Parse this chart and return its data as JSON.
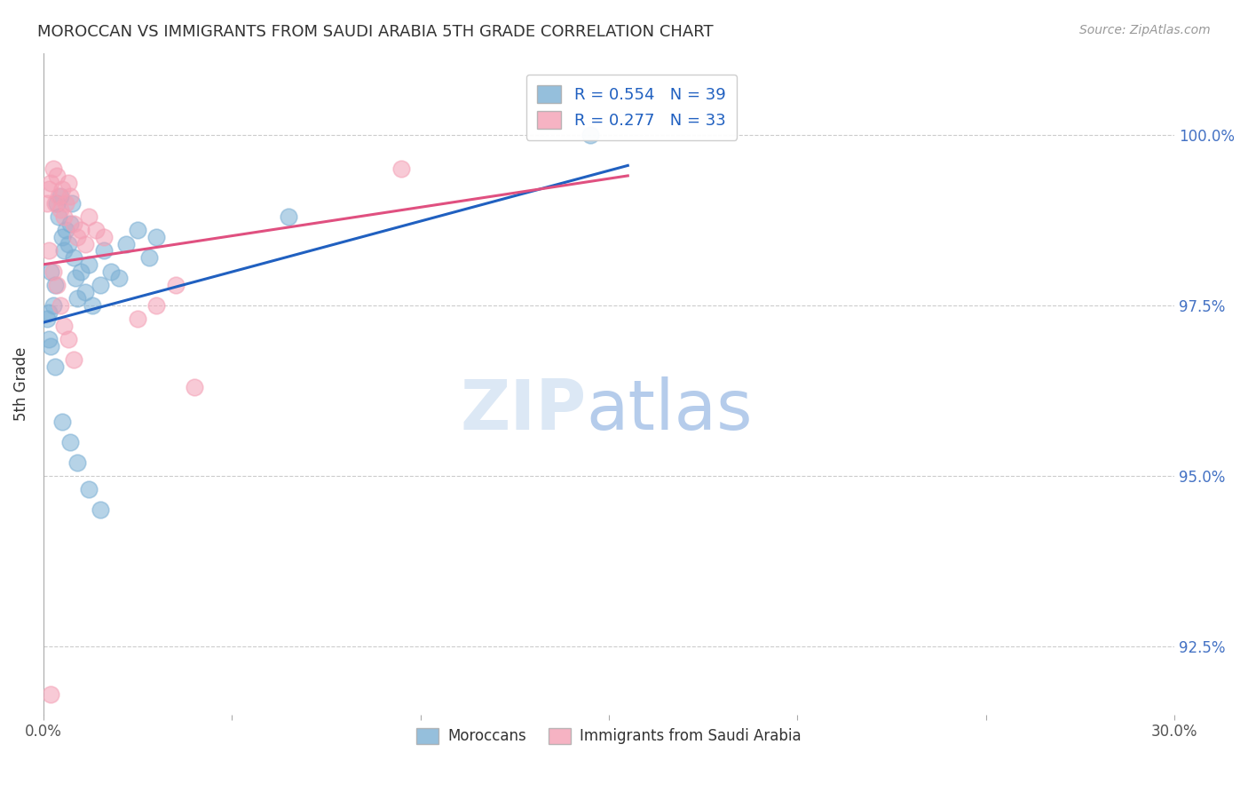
{
  "title": "MOROCCAN VS IMMIGRANTS FROM SAUDI ARABIA 5TH GRADE CORRELATION CHART",
  "source": "Source: ZipAtlas.com",
  "ylabel": "5th Grade",
  "y_ticks": [
    92.5,
    95.0,
    97.5,
    100.0
  ],
  "y_tick_labels": [
    "92.5%",
    "95.0%",
    "97.5%",
    "100.0%"
  ],
  "x_range": [
    0.0,
    30.0
  ],
  "y_range": [
    91.5,
    101.2
  ],
  "legend_blue_label": "Moroccans",
  "legend_pink_label": "Immigrants from Saudi Arabia",
  "blue_R": 0.554,
  "blue_N": 39,
  "pink_R": 0.277,
  "pink_N": 33,
  "blue_color": "#7bafd4",
  "pink_color": "#f4a0b5",
  "blue_line_color": "#2060c0",
  "pink_line_color": "#e05080",
  "blue_scatter": [
    [
      0.15,
      97.4
    ],
    [
      0.2,
      98.0
    ],
    [
      0.25,
      97.5
    ],
    [
      0.3,
      97.8
    ],
    [
      0.35,
      99.0
    ],
    [
      0.4,
      98.8
    ],
    [
      0.45,
      99.1
    ],
    [
      0.5,
      98.5
    ],
    [
      0.55,
      98.3
    ],
    [
      0.6,
      98.6
    ],
    [
      0.65,
      98.4
    ],
    [
      0.7,
      98.7
    ],
    [
      0.75,
      99.0
    ],
    [
      0.8,
      98.2
    ],
    [
      0.85,
      97.9
    ],
    [
      0.9,
      97.6
    ],
    [
      1.0,
      98.0
    ],
    [
      1.1,
      97.7
    ],
    [
      1.2,
      98.1
    ],
    [
      1.3,
      97.5
    ],
    [
      1.5,
      97.8
    ],
    [
      1.6,
      98.3
    ],
    [
      1.8,
      98.0
    ],
    [
      2.0,
      97.9
    ],
    [
      2.2,
      98.4
    ],
    [
      2.5,
      98.6
    ],
    [
      2.8,
      98.2
    ],
    [
      3.0,
      98.5
    ],
    [
      0.1,
      97.3
    ],
    [
      0.15,
      97.0
    ],
    [
      0.2,
      96.9
    ],
    [
      0.3,
      96.6
    ],
    [
      0.5,
      95.8
    ],
    [
      0.7,
      95.5
    ],
    [
      0.9,
      95.2
    ],
    [
      1.2,
      94.8
    ],
    [
      1.5,
      94.5
    ],
    [
      6.5,
      98.8
    ],
    [
      14.5,
      100.0
    ]
  ],
  "pink_scatter": [
    [
      0.1,
      99.0
    ],
    [
      0.15,
      99.2
    ],
    [
      0.2,
      99.3
    ],
    [
      0.25,
      99.5
    ],
    [
      0.3,
      99.0
    ],
    [
      0.35,
      99.4
    ],
    [
      0.4,
      99.1
    ],
    [
      0.45,
      98.9
    ],
    [
      0.5,
      99.2
    ],
    [
      0.55,
      98.8
    ],
    [
      0.6,
      99.0
    ],
    [
      0.65,
      99.3
    ],
    [
      0.7,
      99.1
    ],
    [
      0.8,
      98.7
    ],
    [
      0.9,
      98.5
    ],
    [
      1.0,
      98.6
    ],
    [
      1.1,
      98.4
    ],
    [
      1.2,
      98.8
    ],
    [
      1.4,
      98.6
    ],
    [
      1.6,
      98.5
    ],
    [
      0.15,
      98.3
    ],
    [
      0.25,
      98.0
    ],
    [
      0.35,
      97.8
    ],
    [
      0.45,
      97.5
    ],
    [
      0.55,
      97.2
    ],
    [
      0.65,
      97.0
    ],
    [
      0.8,
      96.7
    ],
    [
      2.5,
      97.3
    ],
    [
      3.0,
      97.5
    ],
    [
      3.5,
      97.8
    ],
    [
      4.0,
      96.3
    ],
    [
      9.5,
      99.5
    ],
    [
      0.2,
      91.8
    ]
  ],
  "blue_line": [
    [
      0.0,
      97.25
    ],
    [
      15.5,
      99.55
    ]
  ],
  "pink_line": [
    [
      0.0,
      98.1
    ],
    [
      15.5,
      99.4
    ]
  ]
}
